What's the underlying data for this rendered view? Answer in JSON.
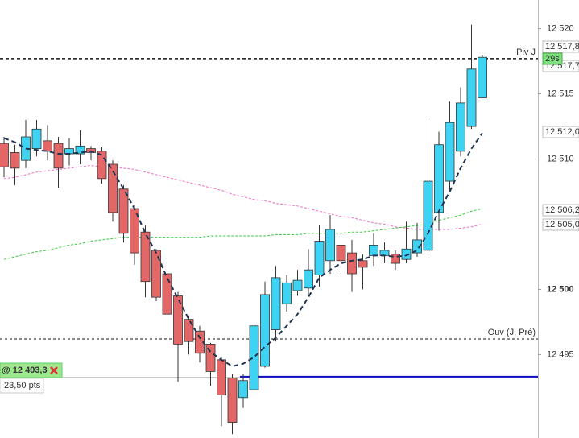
{
  "chart_data": {
    "type": "candlestick",
    "categories": [
      null,
      null,
      null,
      null,
      null,
      null,
      null,
      null,
      null,
      null,
      null,
      null,
      null,
      null,
      null,
      null,
      null,
      null,
      null,
      null,
      null,
      null,
      null,
      null,
      null,
      null,
      null,
      null,
      null,
      null,
      null,
      null,
      null,
      null,
      null,
      null,
      null,
      null,
      null,
      null,
      null,
      null,
      null,
      null,
      null
    ],
    "open": [
      12511.2,
      12510.5,
      12509.9,
      12510.8,
      12511.4,
      12511.2,
      12510.4,
      12510.4,
      12510.8,
      12510.6,
      12509.6,
      12507.7,
      12506.2,
      12504.4,
      12503.0,
      12501.2,
      12499.5,
      12497.7,
      12496.8,
      12495.8,
      12494.6,
      12493.2,
      12491.7,
      12492.3,
      12494.1,
      12496.9,
      12498.9,
      12499.9,
      12500.1,
      12501.1,
      12502.2,
      12503.4,
      12502.8,
      12502.2,
      12502.6,
      12502.6,
      12502.7,
      12502.3,
      12502.8,
      12503.0,
      12505.9,
      12508.3,
      12510.6,
      12512.5,
      12514.7
    ],
    "high": [
      12511.7,
      12511.1,
      12513.0,
      12513.0,
      12512.6,
      12511.7,
      12511.6,
      12512.2,
      12511.0,
      12510.9,
      12509.9,
      12508.0,
      12506.5,
      12504.9,
      12503.1,
      12501.6,
      12499.8,
      12498.0,
      12497.2,
      12495.9,
      12494.8,
      12493.5,
      12493.5,
      12497.4,
      12500.6,
      12501.8,
      12501.1,
      12501.5,
      12503.1,
      12504.9,
      12505.7,
      12504.0,
      12503.8,
      12502.7,
      12504.3,
      12503.6,
      12503.0,
      12505.2,
      12505.1,
      12512.9,
      12512.1,
      12514.4,
      12515.5,
      12520.3,
      12518.0
    ],
    "low": [
      12508.6,
      12508.0,
      12509.3,
      12510.2,
      12509.9,
      12507.8,
      12509.5,
      12509.6,
      12509.9,
      12508.1,
      12505.2,
      12503.6,
      12501.9,
      12499.4,
      12499.1,
      12496.2,
      12492.9,
      12495.0,
      12494.4,
      12492.6,
      12489.5,
      12488.9,
      12490.9,
      12492.3,
      12494.0,
      12496.0,
      12498.3,
      12499.5,
      12499.6,
      12500.2,
      12501.2,
      12501.2,
      12499.8,
      12500.0,
      12501.8,
      12502.0,
      12501.5,
      12502.0,
      12502.5,
      12502.6,
      12504.5,
      12507.6,
      12510.2,
      12512.3,
      12514.7
    ],
    "close": [
      12509.4,
      12509.3,
      12511.7,
      12512.3,
      12510.6,
      12509.3,
      12510.8,
      12511.0,
      12510.5,
      12508.5,
      12505.9,
      12504.3,
      12502.8,
      12500.6,
      12499.4,
      12498.1,
      12495.8,
      12496.0,
      12495.1,
      12493.7,
      12491.9,
      12489.8,
      12493.0,
      12497.2,
      12499.6,
      12500.9,
      12500.5,
      12500.7,
      12501.5,
      12503.7,
      12504.6,
      12502.2,
      12501.2,
      12501.7,
      12503.4,
      12503.0,
      12502.0,
      12503.1,
      12503.8,
      12508.3,
      12511.1,
      12512.8,
      12514.3,
      12516.9,
      12517.8
    ],
    "up_color": "#3ed3f2",
    "down_color": "#e46767",
    "lines": [
      {
        "color": "#1f3550",
        "dash": "6,4",
        "values": [
          12511.6,
          12511.3,
          12510.8,
          12510.7,
          12510.6,
          12510.4,
          12510.4,
          12510.5,
          12510.6,
          12510.3,
          12509.1,
          12507.7,
          12506.2,
          12504.3,
          12502.8,
          12500.9,
          12499.3,
          12497.7,
          12496.3,
          12495.2,
          12494.6,
          12494.1,
          12494.3,
          12494.8,
          12495.6,
          12496.3,
          12497.2,
          12498.1,
          12499.4,
          12500.9,
          12501.5,
          12502.0,
          12502.2,
          12502.3,
          12502.6,
          12502.6,
          12502.5,
          12502.6,
          12503.0,
          12504.3,
          12506.0,
          12507.5,
          12509.3,
          12510.8,
          12512.0
        ]
      },
      {
        "color": "#f070c8",
        "dash": "3,2",
        "values": [
          12508.5,
          12508.6,
          12508.8,
          12509.0,
          12509.1,
          12509.2,
          12509.3,
          12509.4,
          12509.5,
          12509.4,
          12509.4,
          12509.3,
          12509.2,
          12509.0,
          12508.8,
          12508.6,
          12508.4,
          12508.2,
          12508.0,
          12507.8,
          12507.6,
          12507.3,
          12507.1,
          12506.9,
          12506.8,
          12506.6,
          12506.5,
          12506.4,
          12506.2,
          12506.0,
          12505.8,
          12505.6,
          12505.5,
          12505.3,
          12505.1,
          12505.0,
          12504.8,
          12504.7,
          12504.6,
          12504.6,
          12504.6,
          12504.6,
          12504.7,
          12504.8,
          12505.0
        ]
      },
      {
        "color": "#3ccc3c",
        "dash": "3,2",
        "values": [
          12502.3,
          12502.5,
          12502.7,
          12502.9,
          12503.0,
          12503.2,
          12503.4,
          12503.5,
          12503.7,
          12503.8,
          12503.9,
          12504.0,
          12504.0,
          12504.0,
          12504.0,
          12504.0,
          12504.0,
          12504.0,
          12504.0,
          12504.1,
          12504.1,
          12504.1,
          12504.1,
          12504.1,
          12504.1,
          12504.2,
          12504.2,
          12504.2,
          12504.3,
          12504.3,
          12504.3,
          12504.3,
          12504.4,
          12504.4,
          12504.5,
          12504.6,
          12504.7,
          12504.8,
          12504.9,
          12505.0,
          12505.3,
          12505.5,
          12505.7,
          12506.0,
          12506.2
        ]
      }
    ],
    "ylim": [
      12488.6,
      12522.2
    ],
    "yticks": [
      {
        "value": 12520,
        "label": "12 520"
      },
      {
        "value": 12515,
        "label": "12 515"
      },
      {
        "value": 12510,
        "label": "12 510"
      },
      {
        "value": 12500,
        "label": "12 500"
      },
      {
        "value": 12495,
        "label": "12 495"
      }
    ],
    "levels": [
      {
        "label": "Piv J",
        "value": 12517.7
      },
      {
        "label": "Ouv (J, Pré)",
        "value": 12496.2
      }
    ],
    "price_tags": [
      {
        "value": 12517.8,
        "label": "12 517,8"
      },
      {
        "value": 12517.7,
        "label": "12 517,7"
      },
      {
        "value": 12512.0,
        "label": "12 512,0"
      },
      {
        "value": 12506.2,
        "label": "12 506,2",
        "color": "#2fb52f"
      },
      {
        "value": 12505.0,
        "label": "12 505,0",
        "color": "#e040c0"
      }
    ],
    "countdown": "29s",
    "position": {
      "label": "@ 12 493,3",
      "value": 12493.3,
      "pnl": "23,50 pts",
      "color": "#1010c8"
    }
  }
}
